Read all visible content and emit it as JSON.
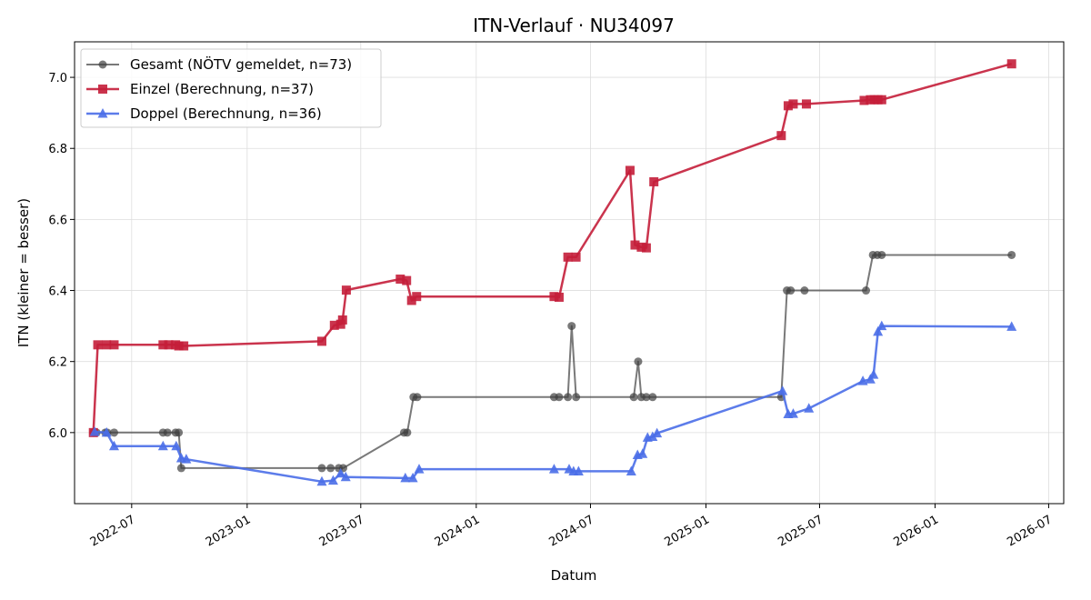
{
  "chart_data": {
    "type": "line",
    "title": "ITN-Verlauf · NU34097",
    "xlabel": "Datum",
    "ylabel": "ITN  (kleiner = besser)",
    "xlim": [
      "2022-04-01",
      "2026-07-25"
    ],
    "ylim": [
      5.8,
      7.1
    ],
    "x_ticks": [
      "2022-07",
      "2023-01",
      "2023-07",
      "2024-01",
      "2024-07",
      "2025-01",
      "2025-07",
      "2026-01",
      "2026-07"
    ],
    "y_ticks": [
      6.0,
      6.2,
      6.4,
      6.6,
      6.8,
      7.0
    ],
    "grid": true,
    "legend_position": "upper-left",
    "series": [
      {
        "name": "Gesamt (NÖTV gemeldet, n=73)",
        "color": "#404040",
        "marker": "circle",
        "points": [
          [
            "2022-05-01",
            6.0
          ],
          [
            "2022-05-06",
            6.0
          ],
          [
            "2022-05-20",
            6.0
          ],
          [
            "2022-05-23",
            6.0
          ],
          [
            "2022-06-03",
            6.0
          ],
          [
            "2022-08-20",
            6.0
          ],
          [
            "2022-08-27",
            6.0
          ],
          [
            "2022-09-09",
            6.0
          ],
          [
            "2022-09-14",
            6.0
          ],
          [
            "2022-09-18",
            5.9
          ],
          [
            "2023-04-30",
            5.9
          ],
          [
            "2023-05-14",
            5.9
          ],
          [
            "2023-05-27",
            5.9
          ],
          [
            "2023-06-03",
            5.9
          ],
          [
            "2023-09-08",
            6.0
          ],
          [
            "2023-09-13",
            6.0
          ],
          [
            "2023-09-23",
            6.1
          ],
          [
            "2023-09-29",
            6.1
          ],
          [
            "2024-05-04",
            6.1
          ],
          [
            "2024-05-12",
            6.1
          ],
          [
            "2024-05-26",
            6.1
          ],
          [
            "2024-06-01",
            6.3
          ],
          [
            "2024-06-08",
            6.1
          ],
          [
            "2024-09-08",
            6.1
          ],
          [
            "2024-09-15",
            6.2
          ],
          [
            "2024-09-20",
            6.1
          ],
          [
            "2024-09-28",
            6.1
          ],
          [
            "2024-10-08",
            6.1
          ],
          [
            "2025-05-01",
            6.1
          ],
          [
            "2025-05-10",
            6.4
          ],
          [
            "2025-05-16",
            6.4
          ],
          [
            "2025-06-07",
            6.4
          ],
          [
            "2025-09-13",
            6.4
          ],
          [
            "2025-09-24",
            6.5
          ],
          [
            "2025-10-01",
            6.5
          ],
          [
            "2025-10-08",
            6.5
          ],
          [
            "2026-05-03",
            6.5
          ]
        ]
      },
      {
        "name": "Einzel (Berechnung, n=37)",
        "color": "#c41e3a",
        "marker": "square",
        "points": [
          [
            "2022-05-01",
            6.0
          ],
          [
            "2022-05-08",
            6.247
          ],
          [
            "2022-05-22",
            6.247
          ],
          [
            "2022-06-03",
            6.247
          ],
          [
            "2022-08-20",
            6.247
          ],
          [
            "2022-08-29",
            6.247
          ],
          [
            "2022-09-09",
            6.247
          ],
          [
            "2022-09-14",
            6.244
          ],
          [
            "2022-09-22",
            6.244
          ],
          [
            "2023-04-30",
            6.257
          ],
          [
            "2023-05-20",
            6.302
          ],
          [
            "2023-05-30",
            6.305
          ],
          [
            "2023-06-02",
            6.317
          ],
          [
            "2023-06-08",
            6.401
          ],
          [
            "2023-09-02",
            6.432
          ],
          [
            "2023-09-12",
            6.428
          ],
          [
            "2023-09-20",
            6.372
          ],
          [
            "2023-09-28",
            6.383
          ],
          [
            "2024-05-04",
            6.383
          ],
          [
            "2024-05-12",
            6.381
          ],
          [
            "2024-05-26",
            6.494
          ],
          [
            "2024-06-08",
            6.494
          ],
          [
            "2024-09-02",
            6.738
          ],
          [
            "2024-09-10",
            6.528
          ],
          [
            "2024-09-20",
            6.522
          ],
          [
            "2024-09-28",
            6.52
          ],
          [
            "2024-10-10",
            6.706
          ],
          [
            "2025-05-01",
            6.836
          ],
          [
            "2025-05-12",
            6.92
          ],
          [
            "2025-05-20",
            6.925
          ],
          [
            "2025-06-10",
            6.925
          ],
          [
            "2025-09-10",
            6.935
          ],
          [
            "2025-09-20",
            6.937
          ],
          [
            "2025-09-26",
            6.937
          ],
          [
            "2025-10-02",
            6.937
          ],
          [
            "2025-10-08",
            6.937
          ],
          [
            "2026-05-03",
            7.038
          ]
        ]
      },
      {
        "name": "Doppel (Berechnung, n=36)",
        "color": "#4a6ee8",
        "marker": "triangle",
        "points": [
          [
            "2022-05-03",
            6.002
          ],
          [
            "2022-05-22",
            6.0
          ],
          [
            "2022-06-03",
            5.962
          ],
          [
            "2022-08-20",
            5.962
          ],
          [
            "2022-09-10",
            5.962
          ],
          [
            "2022-09-18",
            5.928
          ],
          [
            "2022-09-26",
            5.925
          ],
          [
            "2023-04-30",
            5.862
          ],
          [
            "2023-05-18",
            5.865
          ],
          [
            "2023-05-30",
            5.885
          ],
          [
            "2023-06-07",
            5.875
          ],
          [
            "2023-09-10",
            5.872
          ],
          [
            "2023-09-22",
            5.872
          ],
          [
            "2023-10-02",
            5.897
          ],
          [
            "2024-05-04",
            5.897
          ],
          [
            "2024-05-28",
            5.897
          ],
          [
            "2024-06-04",
            5.891
          ],
          [
            "2024-06-12",
            5.891
          ],
          [
            "2024-09-04",
            5.891
          ],
          [
            "2024-09-14",
            5.937
          ],
          [
            "2024-09-22",
            5.94
          ],
          [
            "2024-09-30",
            5.986
          ],
          [
            "2024-10-08",
            5.988
          ],
          [
            "2024-10-15",
            5.998
          ],
          [
            "2025-05-03",
            6.117
          ],
          [
            "2025-05-12",
            6.052
          ],
          [
            "2025-05-20",
            6.053
          ],
          [
            "2025-06-14",
            6.068
          ],
          [
            "2025-09-08",
            6.145
          ],
          [
            "2025-09-20",
            6.15
          ],
          [
            "2025-09-25",
            6.163
          ],
          [
            "2025-10-02",
            6.284
          ],
          [
            "2025-10-08",
            6.3
          ],
          [
            "2026-05-03",
            6.298
          ]
        ]
      }
    ]
  }
}
